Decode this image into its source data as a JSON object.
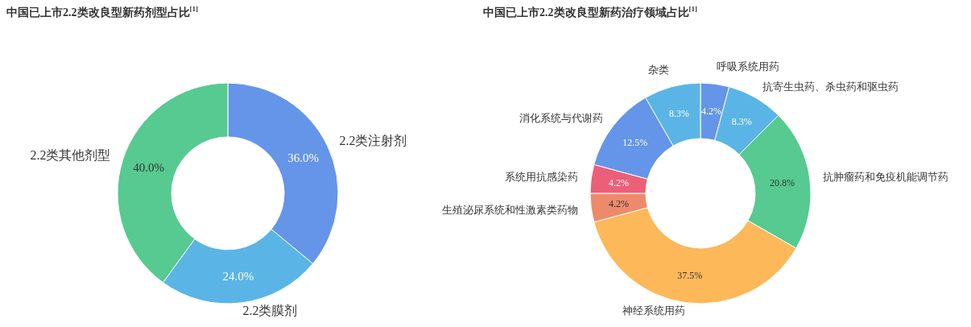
{
  "chart_data": [
    {
      "type": "donut",
      "title": "中国已上市2.2类改良型新药剂型占比$^{[1]}$",
      "categories": [
        "2.2类注射剂",
        "2.2类膜剂",
        "2.2类其他剂型"
      ],
      "values": [
        36.0,
        24.0,
        40.0
      ],
      "colors": [
        "#6495e8",
        "#5ab5e6",
        "#56ca90"
      ],
      "value_labels": [
        "36.0%",
        "24.0%",
        "40.0%"
      ],
      "legend": false
    },
    {
      "type": "donut",
      "title": "中国已上市2.2类改良型新药治疗领域占比$^{[1]}$",
      "categories": [
        "呼吸系统用药",
        "抗寄生虫药、杀虫药和驱虫药",
        "抗肿瘤药和免疫机能调节药",
        "神经系统用药",
        "生殖泌尿系统和性激素类药物",
        "系统用抗感染药",
        "消化系统与代谢药",
        "杂类"
      ],
      "values": [
        4.2,
        8.3,
        20.8,
        37.5,
        4.2,
        4.2,
        12.5,
        8.3
      ],
      "colors": [
        "#6495e8",
        "#5ab5e6",
        "#56ca90",
        "#fdb85a",
        "#ee8a6c",
        "#ec5f78",
        "#6495e8",
        "#5ab5e6"
      ],
      "value_labels": [
        "4.2%",
        "8.3%",
        "20.8%",
        "37.5%",
        "4.2%",
        "4.2%",
        "12.5%",
        "8.3%"
      ],
      "legend": false
    }
  ]
}
